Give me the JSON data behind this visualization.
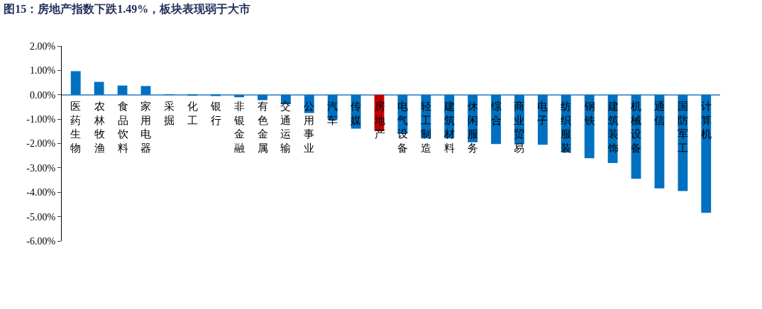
{
  "chart_data": {
    "type": "bar",
    "title": "图15：房地产指数下跌1.49%，板块表现弱于大市",
    "categories": [
      "医药生物",
      "农林牧渔",
      "食品饮料",
      "家用电器",
      "采掘",
      "化工",
      "银行",
      "非银金融",
      "有色金属",
      "交通运输",
      "公用事业",
      "汽车",
      "传媒",
      "房地产",
      "电气设备",
      "轻工制造",
      "建筑材料",
      "休闲服务",
      "综合",
      "商业贸易",
      "电子",
      "纺织服装",
      "钢铁",
      "建筑装饰",
      "机械设备",
      "通信",
      "国防军工",
      "计算机"
    ],
    "values": [
      0.97,
      0.53,
      0.38,
      0.36,
      0.01,
      -0.02,
      -0.05,
      -0.1,
      -0.22,
      -0.38,
      -0.75,
      -1.04,
      -1.39,
      -1.49,
      -1.6,
      -1.79,
      -1.79,
      -1.95,
      -2.02,
      -2.03,
      -2.05,
      -2.37,
      -2.6,
      -2.8,
      -3.45,
      -3.84,
      -3.95,
      -4.84
    ],
    "colors": [
      "#0070c0",
      "#0070c0",
      "#0070c0",
      "#0070c0",
      "#0070c0",
      "#0070c0",
      "#0070c0",
      "#0070c0",
      "#0070c0",
      "#0070c0",
      "#0070c0",
      "#0070c0",
      "#0070c0",
      "#c00000",
      "#0070c0",
      "#0070c0",
      "#0070c0",
      "#0070c0",
      "#0070c0",
      "#0070c0",
      "#0070c0",
      "#0070c0",
      "#0070c0",
      "#0070c0",
      "#0070c0",
      "#0070c0",
      "#0070c0",
      "#0070c0"
    ],
    "ylim": [
      -6,
      2
    ],
    "yticks": [
      {
        "value": 2,
        "label": "2.00%"
      },
      {
        "value": 1,
        "label": "1.00%"
      },
      {
        "value": 0,
        "label": "0.00%"
      },
      {
        "value": -1,
        "label": "-1.00%"
      },
      {
        "value": -2,
        "label": "-2.00%"
      },
      {
        "value": -3,
        "label": "-3.00%"
      },
      {
        "value": -4,
        "label": "-4.00%"
      },
      {
        "value": -5,
        "label": "-5.00%"
      },
      {
        "value": -6,
        "label": "-6.00%"
      }
    ],
    "legend": false
  }
}
